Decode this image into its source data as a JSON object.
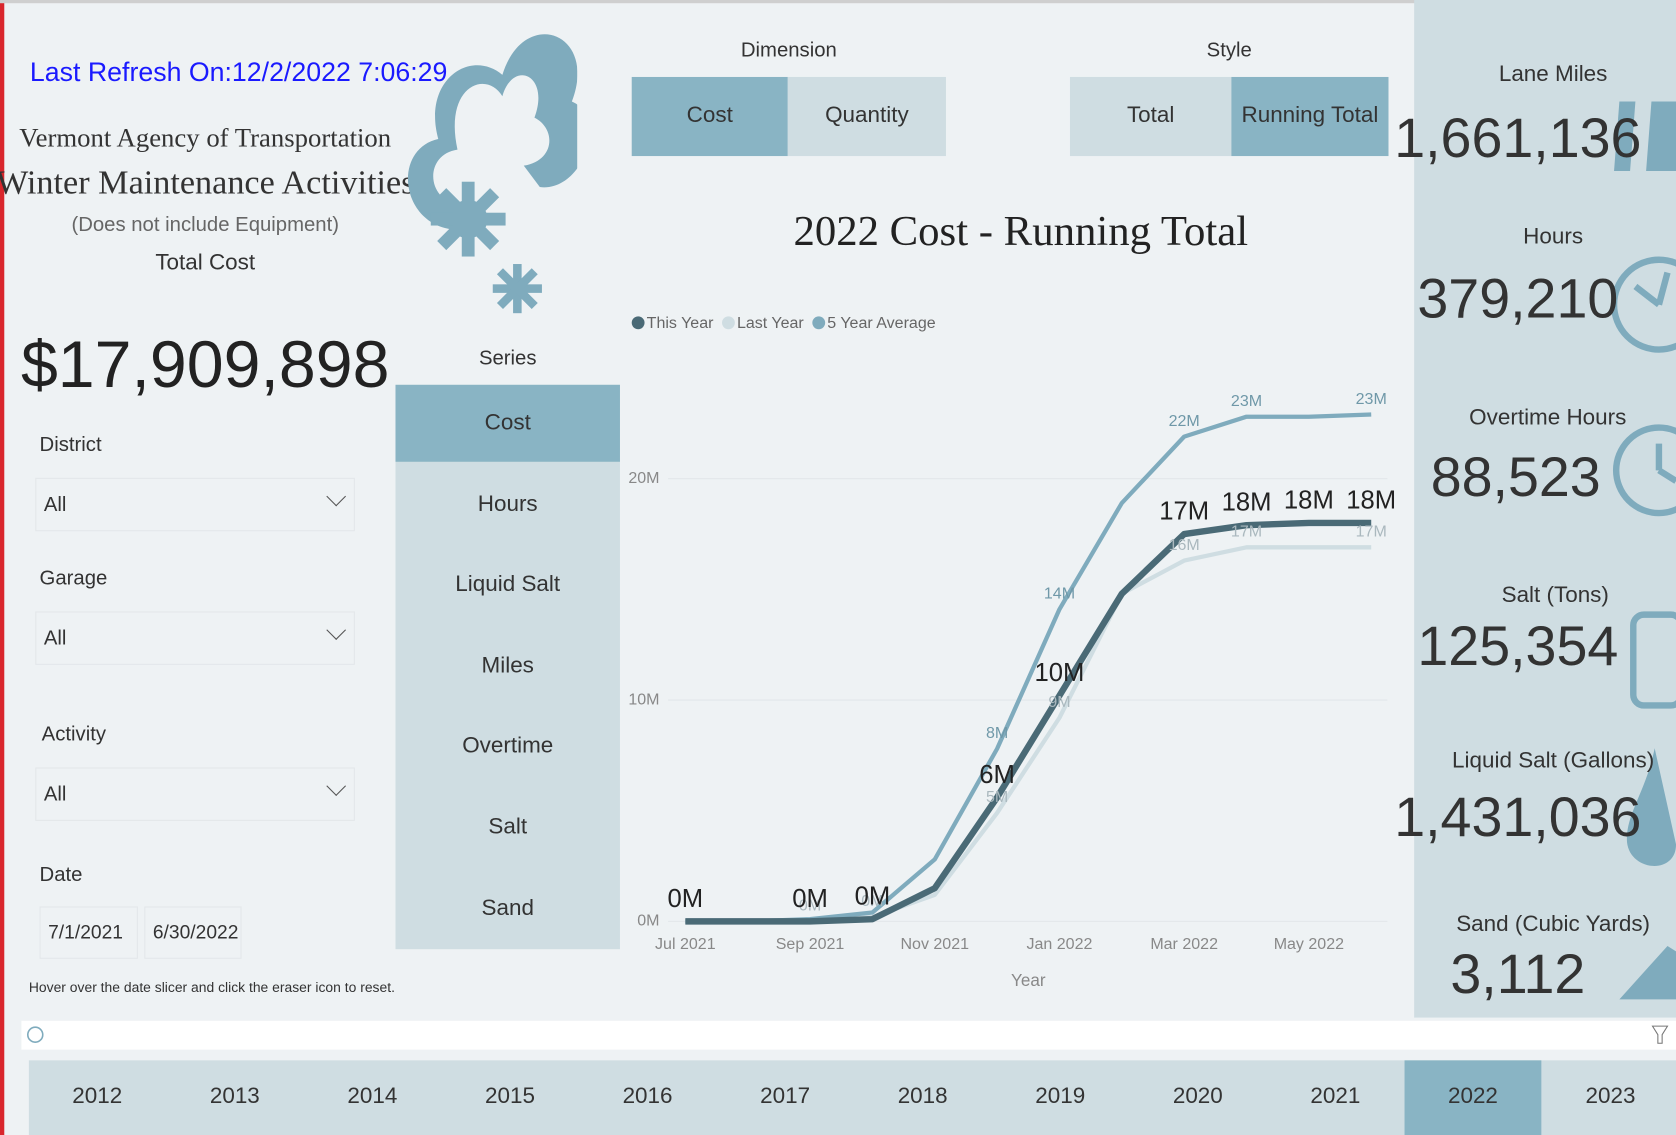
{
  "refresh": "Last Refresh On:12/2/2022 7:06:29 ...",
  "header": {
    "agency": "Vermont Agency of Transportation",
    "title": "Winter Maintenance Activities",
    "note": "(Does not include Equipment)",
    "metric_label": "Total Cost",
    "metric_value": "$17,909,898"
  },
  "filters": [
    {
      "label": "District",
      "value": "All"
    },
    {
      "label": "Garage",
      "value": "All"
    },
    {
      "label": "Activity",
      "value": "All"
    }
  ],
  "date": {
    "label": "Date",
    "start": "7/1/2021",
    "end": "6/30/2022"
  },
  "hint": "Hover over the date slicer and click the eraser icon to reset.",
  "series_slicer": {
    "label": "Series",
    "options": [
      "Cost",
      "Hours",
      "Liquid Salt",
      "Miles",
      "Overtime",
      "Salt",
      "Sand"
    ],
    "selected": 0
  },
  "dimension": {
    "label": "Dimension",
    "options": [
      "Cost",
      "Quantity"
    ],
    "selected": 0
  },
  "style": {
    "label": "Style",
    "options": [
      "Total",
      "Running Total"
    ],
    "selected": 1
  },
  "chart_data": {
    "type": "line",
    "title": "2022 Cost - Running Total",
    "x_label": "Year",
    "categories": [
      "Jul 2021",
      null,
      "Sep 2021",
      null,
      "Nov 2021",
      null,
      "Jan 2022",
      null,
      "Mar 2022",
      null,
      "May 2022",
      null
    ],
    "series": [
      {
        "name": "This Year",
        "color": "#4a6a76",
        "values": [
          0,
          0,
          0,
          0.1,
          1.5,
          5.6,
          10.2,
          14.8,
          17.5,
          17.9,
          18,
          18
        ],
        "value_labels": [
          "0M",
          null,
          "0M",
          "0M",
          null,
          "6M",
          "10M",
          null,
          "17M",
          "18M",
          "18M",
          "18M"
        ]
      },
      {
        "name": "Last Year",
        "color": "#cfdde2",
        "values": [
          0,
          0,
          0,
          0.2,
          1.2,
          4.9,
          9.2,
          14.8,
          16.3,
          16.9,
          16.9,
          16.9
        ],
        "value_labels": [
          null,
          null,
          "0M",
          "0M",
          null,
          "5M",
          "9M",
          null,
          "16M",
          "17M",
          null,
          "17M"
        ]
      },
      {
        "name": "5 Year Average",
        "color": "#7fabbd",
        "values": [
          0,
          0,
          0.1,
          0.4,
          2.8,
          7.8,
          14.1,
          18.9,
          21.9,
          22.8,
          22.8,
          22.9
        ],
        "value_labels": [
          null,
          null,
          null,
          null,
          null,
          "8M",
          "14M",
          null,
          "22M",
          "23M",
          null,
          "23M"
        ]
      }
    ],
    "ylim": [
      0,
      24
    ],
    "yticks": [
      {
        "value": 0,
        "label": "0M"
      },
      {
        "value": 10,
        "label": "10M"
      },
      {
        "value": 20,
        "label": "20M"
      }
    ],
    "grid": true,
    "legend": "top-left"
  },
  "kpis": [
    {
      "label": "Lane Miles",
      "value": "1,661,136"
    },
    {
      "label": "Hours",
      "value": "379,210"
    },
    {
      "label": "Overtime Hours",
      "value": "88,523"
    },
    {
      "label": "Salt (Tons)",
      "value": "125,354"
    },
    {
      "label": "Liquid Salt (Gallons)",
      "value": "1,431,036"
    },
    {
      "label": "Sand (Cubic Yards)",
      "value": "3,112"
    }
  ],
  "years": {
    "options": [
      "2012",
      "2013",
      "2014",
      "2015",
      "2016",
      "2017",
      "2018",
      "2019",
      "2020",
      "2021",
      "2022",
      "2023"
    ],
    "selected": 10
  }
}
